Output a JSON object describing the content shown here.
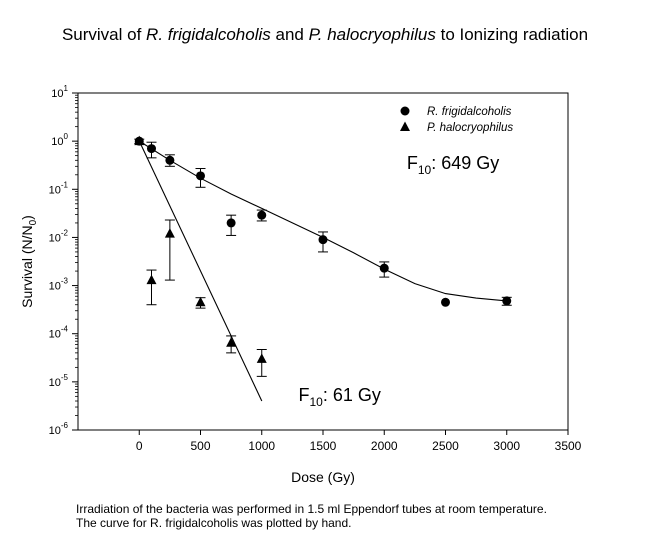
{
  "title_parts": {
    "p1": "Survival of ",
    "p2": "R. frigidalcoholis",
    "p3": " and ",
    "p4": "P. halocryophilus",
    "p5": " to Ionizing radiation"
  },
  "caption": {
    "line1": "Irradiation of the bacteria was performed in 1.5 ml Eppendorf tubes at room temperature.",
    "line2": "The curve for R. frigidalcoholis was plotted by hand."
  },
  "chart_data": {
    "type": "scatter",
    "title": "Survival of R. frigidalcoholis and P. halocryophilus to Ionizing radiation",
    "xlabel": "Dose (Gy)",
    "ylabel": "Survival (N/N0)",
    "ylabel_parts": {
      "main": "Survival (N/N",
      "sub": "0",
      "end": ")"
    },
    "xlim": [
      -500,
      3500
    ],
    "ylim": [
      1e-06,
      10
    ],
    "yscale": "log",
    "x_ticks": [
      0,
      500,
      1000,
      1500,
      2000,
      2500,
      3000,
      3500
    ],
    "x_tick_labels": [
      "0",
      "500",
      "1000",
      "1500",
      "2000",
      "2500",
      "3000",
      "3500"
    ],
    "y_ticks": [
      {
        "value": 10,
        "base": "10",
        "exp": "1"
      },
      {
        "value": 1,
        "base": "10",
        "exp": "0"
      },
      {
        "value": 0.1,
        "base": "10",
        "exp": "-1"
      },
      {
        "value": 0.01,
        "base": "10",
        "exp": "-2"
      },
      {
        "value": 0.001,
        "base": "10",
        "exp": "-3"
      },
      {
        "value": 0.0001,
        "base": "10",
        "exp": "-4"
      },
      {
        "value": 1e-05,
        "base": "10",
        "exp": "-5"
      },
      {
        "value": 1e-06,
        "base": "10",
        "exp": "-6"
      }
    ],
    "legend_position": "top-right",
    "series": [
      {
        "name": "R. frigidalcoholis",
        "marker": "circle",
        "points": [
          {
            "x": 0,
            "y": 1.0,
            "lo": 0.9,
            "hi": 1.1
          },
          {
            "x": 100,
            "y": 0.7,
            "lo": 0.45,
            "hi": 0.95
          },
          {
            "x": 250,
            "y": 0.4,
            "lo": 0.3,
            "hi": 0.52
          },
          {
            "x": 500,
            "y": 0.19,
            "lo": 0.11,
            "hi": 0.27
          },
          {
            "x": 750,
            "y": 0.02,
            "lo": 0.011,
            "hi": 0.029
          },
          {
            "x": 1000,
            "y": 0.029,
            "lo": 0.022,
            "hi": 0.037
          },
          {
            "x": 1500,
            "y": 0.009,
            "lo": 0.005,
            "hi": 0.013
          },
          {
            "x": 2000,
            "y": 0.0023,
            "lo": 0.0015,
            "hi": 0.0031
          },
          {
            "x": 2500,
            "y": 0.00045,
            "lo": null,
            "hi": null
          },
          {
            "x": 3000,
            "y": 0.00048,
            "lo": 0.00039,
            "hi": 0.00057
          }
        ],
        "fit_curve": [
          [
            0,
            1.0
          ],
          [
            250,
            0.4
          ],
          [
            500,
            0.17
          ],
          [
            750,
            0.08
          ],
          [
            1000,
            0.04
          ],
          [
            1250,
            0.02
          ],
          [
            1500,
            0.01
          ],
          [
            1750,
            0.0048
          ],
          [
            2000,
            0.0022
          ],
          [
            2250,
            0.0011
          ],
          [
            2500,
            0.00068
          ],
          [
            2750,
            0.00055
          ],
          [
            3000,
            0.00048
          ]
        ],
        "annotation": {
          "x": 2250,
          "y": 0.2,
          "base": "F",
          "sub": "10",
          "text": ": 649 Gy"
        }
      },
      {
        "name": "P. halocryophilus",
        "marker": "triangle",
        "points": [
          {
            "x": 0,
            "y": 1.0,
            "lo": null,
            "hi": null
          },
          {
            "x": 100,
            "y": 0.0013,
            "lo": 0.0004,
            "hi": 0.0021
          },
          {
            "x": 250,
            "y": 0.012,
            "lo": 0.0013,
            "hi": 0.023
          },
          {
            "x": 500,
            "y": 0.00045,
            "lo": 0.00034,
            "hi": 0.00056
          },
          {
            "x": 750,
            "y": 6.5e-05,
            "lo": 4e-05,
            "hi": 9e-05
          },
          {
            "x": 1000,
            "y": 3e-05,
            "lo": 1.3e-05,
            "hi": 4.7e-05
          }
        ],
        "fit_curve": [
          [
            0,
            1.0
          ],
          [
            1000,
            4e-06
          ]
        ],
        "annotation": {
          "x": 1300,
          "y": 4e-06,
          "base": "F",
          "sub": "10",
          "text": ": 61 Gy"
        }
      }
    ]
  }
}
